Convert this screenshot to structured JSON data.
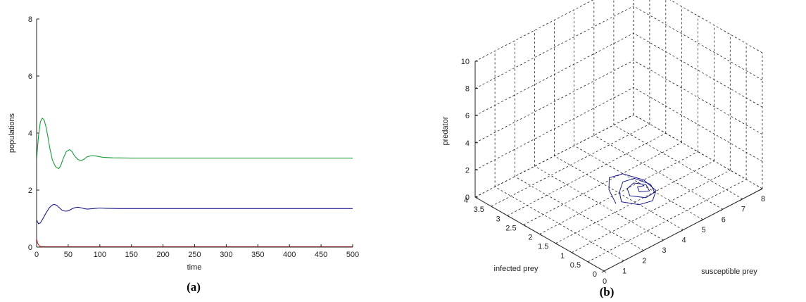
{
  "figure": {
    "caption_a": "(a)",
    "caption_b": "(b)"
  },
  "chart_data": [
    {
      "type": "line",
      "xlabel": "time",
      "ylabel": "populations",
      "xlim": [
        0,
        500
      ],
      "ylim": [
        0,
        8
      ],
      "xticks": [
        0,
        50,
        100,
        150,
        200,
        250,
        300,
        350,
        400,
        450,
        500
      ],
      "yticks": [
        0,
        2,
        4,
        6,
        8
      ],
      "grid": false,
      "colors": [
        "#1a9a3a",
        "#1a1a8c",
        "#e0202a"
      ],
      "series": [
        {
          "color": "#1a9a3a",
          "x": [
            0,
            3,
            6,
            9,
            12,
            15,
            18,
            21,
            25,
            30,
            35,
            38,
            42,
            47,
            52,
            56,
            60,
            65,
            70,
            75,
            80,
            88,
            95,
            105,
            120,
            150,
            200,
            300,
            400,
            500
          ],
          "y": [
            3.1,
            3.9,
            4.4,
            4.52,
            4.45,
            4.2,
            3.85,
            3.45,
            3.05,
            2.82,
            2.75,
            2.85,
            3.1,
            3.35,
            3.42,
            3.35,
            3.2,
            3.08,
            3.03,
            3.08,
            3.17,
            3.21,
            3.19,
            3.15,
            3.13,
            3.12,
            3.12,
            3.12,
            3.12,
            3.12
          ]
        },
        {
          "color": "#1a1a8c",
          "x": [
            0,
            3,
            6,
            10,
            15,
            20,
            25,
            28,
            32,
            36,
            40,
            45,
            50,
            55,
            60,
            65,
            70,
            75,
            80,
            90,
            100,
            110,
            130,
            200,
            300,
            400,
            500
          ],
          "y": [
            0.95,
            0.82,
            0.85,
            1.0,
            1.2,
            1.38,
            1.48,
            1.5,
            1.46,
            1.38,
            1.3,
            1.26,
            1.27,
            1.33,
            1.38,
            1.4,
            1.38,
            1.35,
            1.33,
            1.35,
            1.37,
            1.36,
            1.35,
            1.35,
            1.35,
            1.35,
            1.35
          ]
        },
        {
          "color": "#e0202a",
          "x": [
            0,
            1,
            2,
            4,
            6,
            10,
            20,
            50,
            100,
            200,
            300,
            400,
            500
          ],
          "y": [
            0.28,
            0.2,
            0.12,
            0.05,
            0.02,
            0.01,
            0.01,
            0.01,
            0.01,
            0.01,
            0.01,
            0.01,
            0.01
          ]
        }
      ]
    },
    {
      "type": "line",
      "projection": "3d",
      "xlabel": "susceptible prey",
      "ylabel": "infected prey",
      "zlabel": "predator",
      "xlim": [
        0,
        8
      ],
      "ylim": [
        0,
        4
      ],
      "zlim": [
        0,
        10
      ],
      "xticks": [
        0,
        1,
        2,
        3,
        4,
        5,
        6,
        7,
        8
      ],
      "yticks": [
        0,
        0.5,
        1,
        1.5,
        2,
        2.5,
        3,
        3.5,
        4
      ],
      "zticks": [
        0,
        2,
        4,
        6,
        8,
        10
      ],
      "xtick_labels": [
        "0",
        "1",
        "2",
        "3",
        "4",
        "5",
        "6",
        "7",
        "8"
      ],
      "ytick_labels": [
        "0",
        "0.5",
        "1",
        "1.5",
        "2",
        "2.5",
        "3",
        "3.5",
        "4"
      ],
      "ztick_labels": [
        "0",
        "2",
        "4",
        "6",
        "8",
        "10"
      ],
      "grid": true,
      "colors": [
        "#1a1a8c"
      ],
      "series": [
        {
          "color": "#1a1a8c",
          "x": [
            2.8,
            3.1,
            3.6,
            4.2,
            4.6,
            4.5,
            4.0,
            3.4,
            3.0,
            3.3,
            3.8,
            4.3,
            4.55,
            4.35,
            3.9,
            3.5,
            3.7,
            4.1,
            4.4,
            4.25,
            3.9,
            4.05,
            4.3
          ],
          "y": [
            1.35,
            1.75,
            2.05,
            2.0,
            1.6,
            1.15,
            0.95,
            1.0,
            1.3,
            1.55,
            1.75,
            1.7,
            1.35,
            1.1,
            1.1,
            1.35,
            1.55,
            1.6,
            1.4,
            1.2,
            1.3,
            1.45,
            1.4
          ],
          "z": [
            1.0,
            1.25,
            1.35,
            1.25,
            1.05,
            0.95,
            0.85,
            0.95,
            1.05,
            1.2,
            1.3,
            1.25,
            1.1,
            1.0,
            0.95,
            1.05,
            1.15,
            1.2,
            1.12,
            1.05,
            1.1,
            1.15,
            1.12
          ]
        }
      ]
    }
  ]
}
